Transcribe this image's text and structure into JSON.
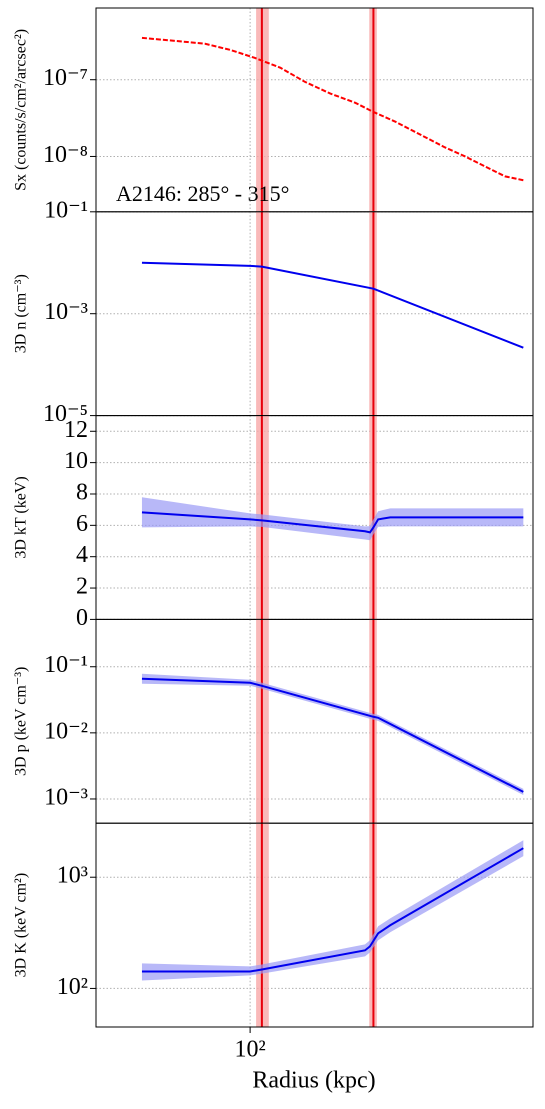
{
  "shared_x": {
    "label": "Radius (kpc)",
    "log": true,
    "xlim": [
      36.5,
      636
    ],
    "xticks": [
      {
        "value": 100,
        "label": "10²"
      }
    ],
    "grid": true,
    "vlines": [
      108,
      224
    ],
    "vbands": [
      [
        104,
        113
      ],
      [
        218,
        229
      ]
    ],
    "vline_color": "#e8000b",
    "vband_color": "#f7a8a8"
  },
  "chart_data": [
    {
      "type": "line",
      "ylabel": "Sx (counts/s/cm²/arcsec²)",
      "annotation": "A2146: 285° - 315°",
      "log": true,
      "grid": true,
      "ylim": [
        1.9e-09,
        8.6e-07
      ],
      "yticks": [
        {
          "value": 1e-08,
          "label": "10⁻⁸"
        },
        {
          "value": 1e-07,
          "label": "10⁻⁷"
        }
      ],
      "color": "#ff0000",
      "dashed": true,
      "x": [
        49.3,
        61.2,
        74.5,
        87.7,
        103,
        122,
        143,
        169,
        199,
        224,
        258,
        304,
        358,
        408,
        465,
        530,
        597
      ],
      "values": [
        3.51e-07,
        3.21e-07,
        2.94e-07,
        2.45e-07,
        1.93e-07,
        1.43e-07,
        9.4e-08,
        6.6e-08,
        5e-08,
        3.8e-08,
        2.85e-08,
        1.93e-08,
        1.31e-08,
        1e-08,
        7.4e-09,
        5.5e-09,
        4.9e-09
      ]
    },
    {
      "type": "line",
      "ylabel": "3D n (cm⁻³)",
      "log": true,
      "grid": true,
      "ylim": [
        1e-05,
        0.1
      ],
      "yticks": [
        {
          "value": 1e-05,
          "label": "10⁻⁵"
        },
        {
          "value": 0.001,
          "label": "10⁻³"
        },
        {
          "value": 0.1,
          "label": "10⁻¹"
        }
      ],
      "color": "#0000ee",
      "x": [
        49.3,
        100,
        108,
        224,
        597
      ],
      "values": [
        0.01,
        0.0087,
        0.0084,
        0.0031,
        0.000215
      ]
    },
    {
      "type": "band",
      "ylabel": "3D kT (keV)",
      "log": false,
      "grid": true,
      "ylim": [
        0,
        13
      ],
      "yticks": [
        0,
        2,
        4,
        6,
        8,
        10,
        12
      ],
      "color": "#0000ee",
      "band_color": "#9a9af5",
      "x": [
        49.3,
        100,
        108,
        212,
        219,
        224,
        231,
        250,
        597
      ],
      "values": [
        6.83,
        6.38,
        6.32,
        5.62,
        5.55,
        5.87,
        6.38,
        6.51,
        6.51
      ],
      "upper": [
        7.79,
        6.76,
        6.7,
        5.93,
        5.95,
        6.38,
        6.9,
        7.08,
        7.08
      ],
      "lower": [
        5.87,
        5.93,
        5.9,
        5.1,
        5.05,
        5.42,
        5.9,
        5.93,
        5.93
      ]
    },
    {
      "type": "band",
      "ylabel": "3D p (keV cm⁻³)",
      "log": true,
      "grid": true,
      "ylim": [
        0.00043,
        0.52
      ],
      "yticks": [
        {
          "value": 0.001,
          "label": "10⁻³"
        },
        {
          "value": 0.01,
          "label": "10⁻²"
        },
        {
          "value": 0.1,
          "label": "10⁻¹"
        }
      ],
      "color": "#0000ee",
      "band_color": "#9a9af5",
      "x": [
        49.3,
        100,
        108,
        224,
        231,
        597
      ],
      "values": [
        0.0658,
        0.0573,
        0.0515,
        0.0175,
        0.0169,
        0.00128
      ],
      "upper": [
        0.0783,
        0.0636,
        0.0573,
        0.0194,
        0.0187,
        0.00142
      ],
      "lower": [
        0.0552,
        0.0515,
        0.0464,
        0.0158,
        0.0152,
        0.00115
      ]
    },
    {
      "type": "band",
      "ylabel": "3D K (keV cm²)",
      "log": true,
      "grid": true,
      "ylim": [
        45,
        3060
      ],
      "yticks": [
        {
          "value": 100,
          "label": "10²"
        },
        {
          "value": 1000,
          "label": "10³"
        }
      ],
      "color": "#0000ee",
      "band_color": "#9a9af5",
      "x": [
        49.3,
        100,
        108,
        212,
        219,
        231,
        250,
        597
      ],
      "values": [
        142,
        142,
        148,
        220,
        239,
        313,
        370,
        1824
      ],
      "upper": [
        168,
        158,
        164,
        249,
        271,
        362,
        427,
        2150
      ],
      "lower": [
        118,
        131,
        136,
        194,
        211,
        271,
        320,
        1546
      ]
    }
  ]
}
